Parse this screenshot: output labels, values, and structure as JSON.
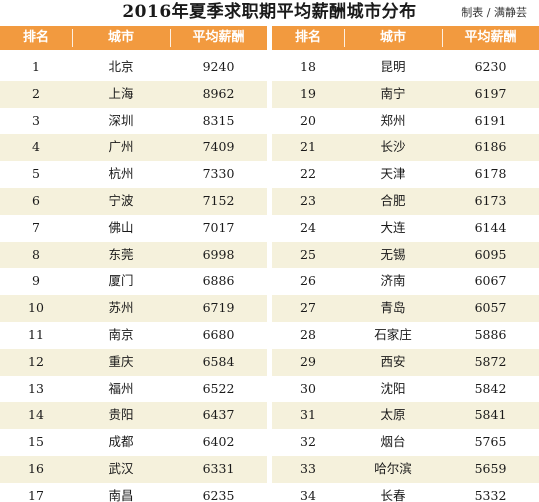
{
  "header": {
    "title": "2016年夏季求职期平均薪酬城市分布",
    "credit": "制表 / 满静芸"
  },
  "columns": {
    "rank": "排名",
    "city": "城市",
    "salary": "平均薪酬"
  },
  "rows_left": [
    {
      "rank": "1",
      "city": "北京",
      "salary": "9240"
    },
    {
      "rank": "2",
      "city": "上海",
      "salary": "8962"
    },
    {
      "rank": "3",
      "city": "深圳",
      "salary": "8315"
    },
    {
      "rank": "4",
      "city": "广州",
      "salary": "7409"
    },
    {
      "rank": "5",
      "city": "杭州",
      "salary": "7330"
    },
    {
      "rank": "6",
      "city": "宁波",
      "salary": "7152"
    },
    {
      "rank": "7",
      "city": "佛山",
      "salary": "7017"
    },
    {
      "rank": "8",
      "city": "东莞",
      "salary": "6998"
    },
    {
      "rank": "9",
      "city": "厦门",
      "salary": "6886"
    },
    {
      "rank": "10",
      "city": "苏州",
      "salary": "6719"
    },
    {
      "rank": "11",
      "city": "南京",
      "salary": "6680"
    },
    {
      "rank": "12",
      "city": "重庆",
      "salary": "6584"
    },
    {
      "rank": "13",
      "city": "福州",
      "salary": "6522"
    },
    {
      "rank": "14",
      "city": "贵阳",
      "salary": "6437"
    },
    {
      "rank": "15",
      "city": "成都",
      "salary": "6402"
    },
    {
      "rank": "16",
      "city": "武汉",
      "salary": "6331"
    },
    {
      "rank": "17",
      "city": "南昌",
      "salary": "6235"
    }
  ],
  "rows_right": [
    {
      "rank": "18",
      "city": "昆明",
      "salary": "6230"
    },
    {
      "rank": "19",
      "city": "南宁",
      "salary": "6197"
    },
    {
      "rank": "20",
      "city": "郑州",
      "salary": "6191"
    },
    {
      "rank": "21",
      "city": "长沙",
      "salary": "6186"
    },
    {
      "rank": "22",
      "city": "天津",
      "salary": "6178"
    },
    {
      "rank": "23",
      "city": "合肥",
      "salary": "6173"
    },
    {
      "rank": "24",
      "city": "大连",
      "salary": "6144"
    },
    {
      "rank": "25",
      "city": "无锡",
      "salary": "6095"
    },
    {
      "rank": "26",
      "city": "济南",
      "salary": "6067"
    },
    {
      "rank": "27",
      "city": "青岛",
      "salary": "6057"
    },
    {
      "rank": "28",
      "city": "石家庄",
      "salary": "5886"
    },
    {
      "rank": "29",
      "city": "西安",
      "salary": "5872"
    },
    {
      "rank": "30",
      "city": "沈阳",
      "salary": "5842"
    },
    {
      "rank": "31",
      "city": "太原",
      "salary": "5841"
    },
    {
      "rank": "32",
      "city": "烟台",
      "salary": "5765"
    },
    {
      "rank": "33",
      "city": "哈尔滨",
      "salary": "5659"
    },
    {
      "rank": "34",
      "city": "长春",
      "salary": "5332"
    }
  ],
  "colors": {
    "header_bg": "#f29a3f",
    "stripe_bg": "#f5f1dc",
    "header_text": "#ffffff"
  }
}
